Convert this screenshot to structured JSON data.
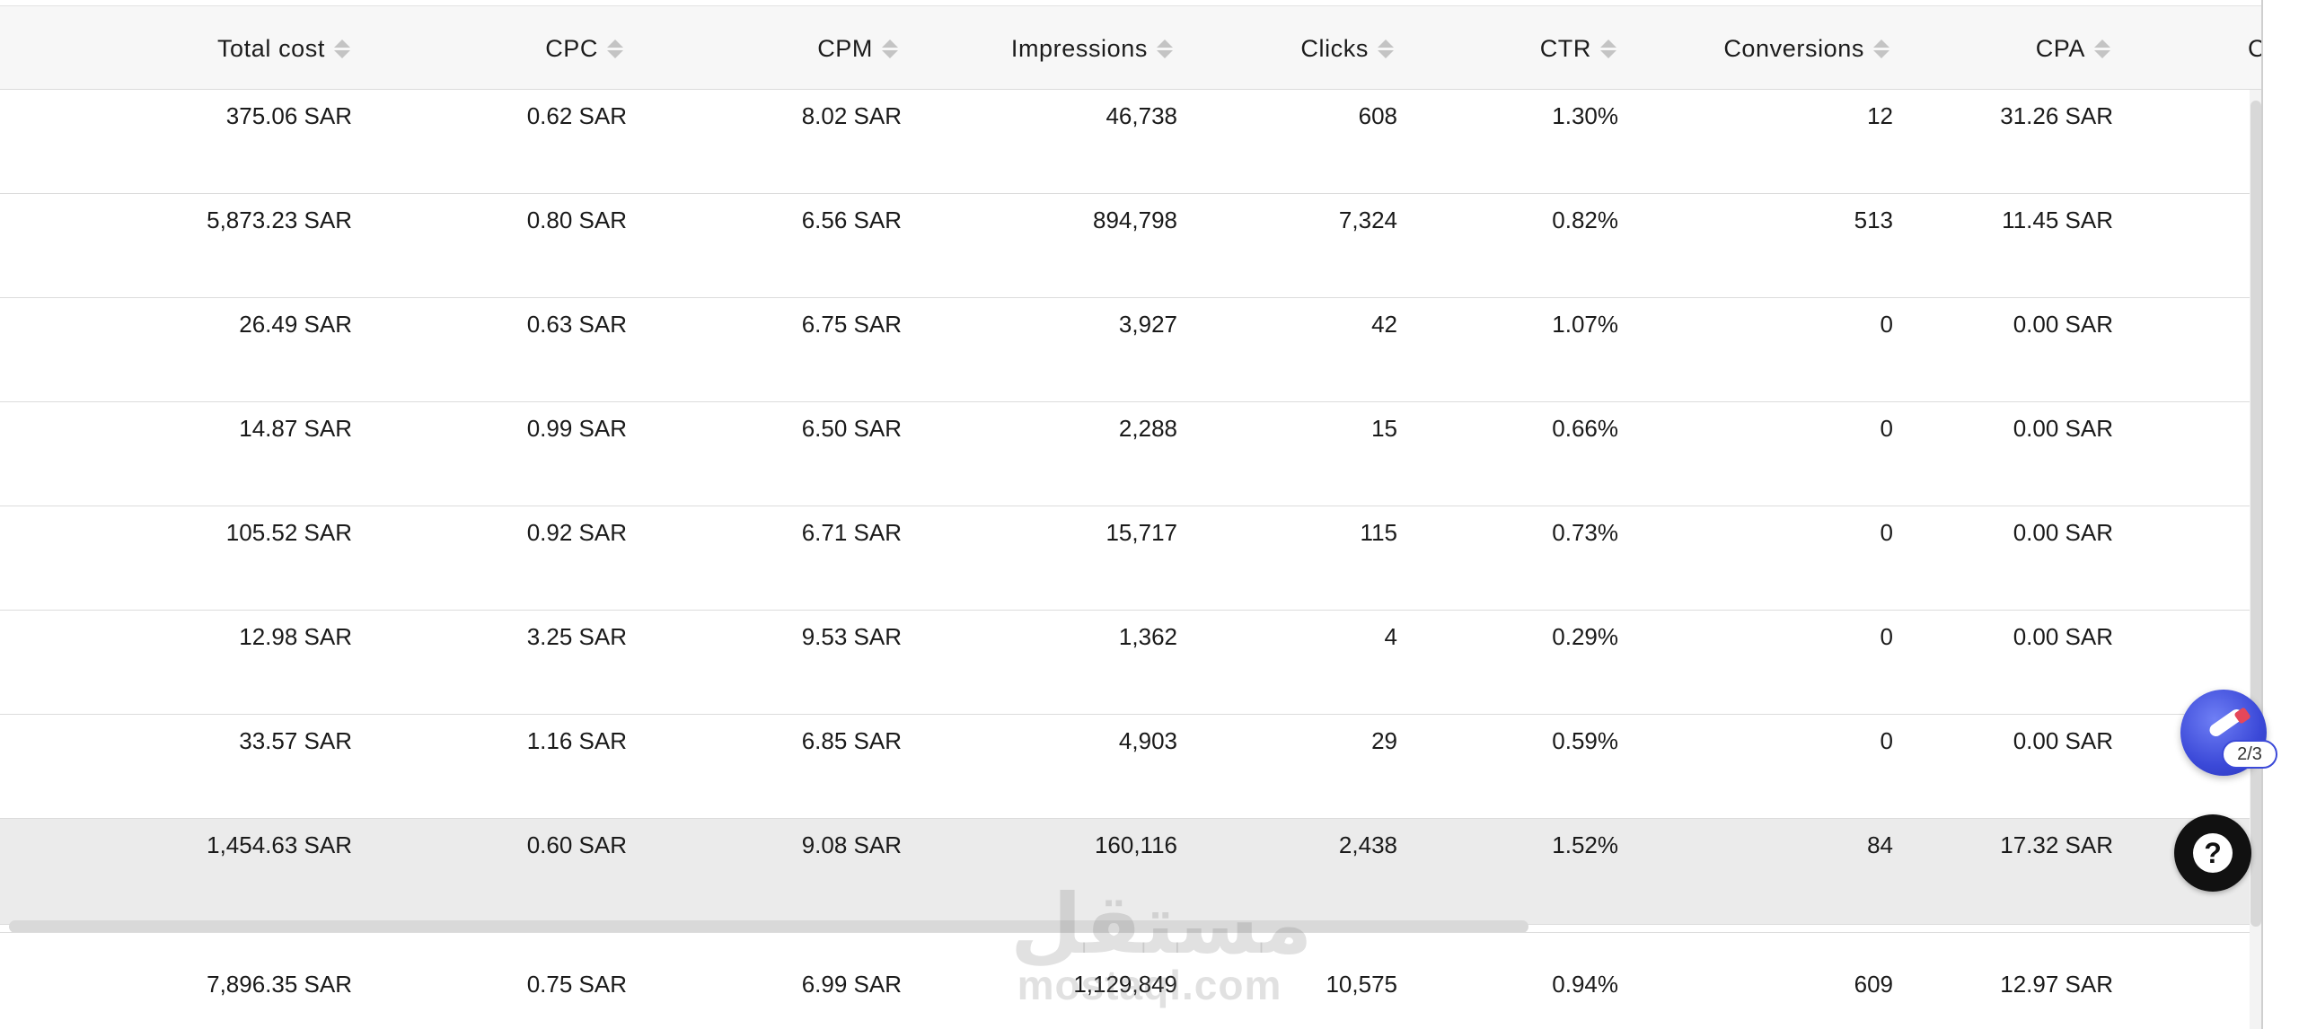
{
  "columns": [
    {
      "key": "total_cost",
      "label": "Total cost"
    },
    {
      "key": "cpc",
      "label": "CPC"
    },
    {
      "key": "cpm",
      "label": "CPM"
    },
    {
      "key": "impressions",
      "label": "Impressions"
    },
    {
      "key": "clicks",
      "label": "Clicks"
    },
    {
      "key": "ctr",
      "label": "CTR"
    },
    {
      "key": "conversions",
      "label": "Conversions"
    },
    {
      "key": "cpa",
      "label": "CPA"
    }
  ],
  "cut_column_label": "C",
  "rows": [
    [
      "375.06 SAR",
      "0.62 SAR",
      "8.02 SAR",
      "46,738",
      "608",
      "1.30%",
      "12",
      "31.26 SAR"
    ],
    [
      "5,873.23 SAR",
      "0.80 SAR",
      "6.56 SAR",
      "894,798",
      "7,324",
      "0.82%",
      "513",
      "11.45 SAR"
    ],
    [
      "26.49 SAR",
      "0.63 SAR",
      "6.75 SAR",
      "3,927",
      "42",
      "1.07%",
      "0",
      "0.00 SAR"
    ],
    [
      "14.87 SAR",
      "0.99 SAR",
      "6.50 SAR",
      "2,288",
      "15",
      "0.66%",
      "0",
      "0.00 SAR"
    ],
    [
      "105.52 SAR",
      "0.92 SAR",
      "6.71 SAR",
      "15,717",
      "115",
      "0.73%",
      "0",
      "0.00 SAR"
    ],
    [
      "12.98 SAR",
      "3.25 SAR",
      "9.53 SAR",
      "1,362",
      "4",
      "0.29%",
      "0",
      "0.00 SAR"
    ],
    [
      "33.57 SAR",
      "1.16 SAR",
      "6.85 SAR",
      "4,903",
      "29",
      "0.59%",
      "0",
      "0.00 SAR"
    ],
    [
      "1,454.63 SAR",
      "0.60 SAR",
      "9.08 SAR",
      "160,116",
      "2,438",
      "1.52%",
      "84",
      "17.32 SAR"
    ]
  ],
  "highlighted_row": 7,
  "total_row": [
    "7,896.35 SAR",
    "0.75 SAR",
    "6.99 SAR",
    "1,129,849",
    "10,575",
    "0.94%",
    "609",
    "12.97 SAR"
  ],
  "widget": {
    "badge": "2/3",
    "icon": "pen-icon"
  },
  "help": {
    "icon": "question-icon",
    "glyph": "?"
  },
  "watermark": {
    "arabic": "مستقل",
    "latin": "mostaql.com"
  }
}
